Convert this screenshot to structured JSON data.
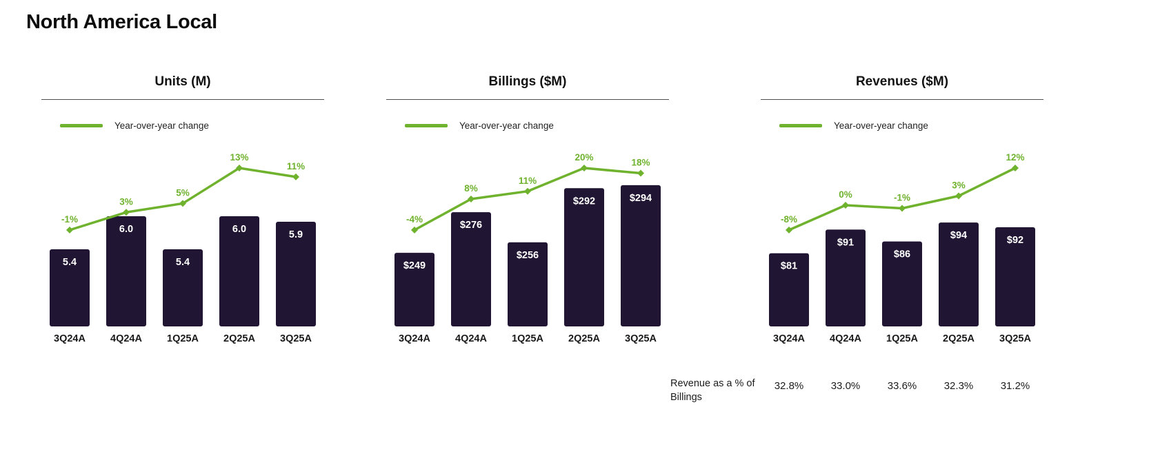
{
  "page": {
    "title": "North America Local"
  },
  "legend": {
    "label": "Year-over-year change"
  },
  "colors": {
    "bar": "#201532",
    "line": "#6fb22d",
    "bar_label": "#ffffff",
    "label": "#1a1a1a",
    "title": "#121212",
    "rule": "#4d4d4d"
  },
  "chart_data": [
    {
      "type": "bar",
      "title": "Units (M)",
      "categories": [
        "3Q24A",
        "4Q24A",
        "1Q25A",
        "2Q25A",
        "3Q25A"
      ],
      "series": [
        {
          "name": "Units",
          "type": "bar",
          "values": [
            5.4,
            6.0,
            5.4,
            6.0,
            5.9
          ],
          "labels": [
            "5.4",
            "6.0",
            "5.4",
            "6.0",
            "5.9"
          ]
        },
        {
          "name": "Year-over-year change",
          "type": "line",
          "values": [
            -1,
            3,
            5,
            13,
            11
          ],
          "labels": [
            "-1%",
            "3%",
            "5%",
            "13%",
            "11%"
          ]
        }
      ],
      "legend": [
        "Year-over-year change"
      ],
      "axis_hint": {
        "bar_ylim": [
          4.0,
          7.0
        ],
        "grid": false,
        "legend_position": "top-left"
      }
    },
    {
      "type": "bar",
      "title": "Billings ($M)",
      "categories": [
        "3Q24A",
        "4Q24A",
        "1Q25A",
        "2Q25A",
        "3Q25A"
      ],
      "series": [
        {
          "name": "Billings",
          "type": "bar",
          "values": [
            249,
            276,
            256,
            292,
            294
          ],
          "labels": [
            "$249",
            "$276",
            "$256",
            "$292",
            "$294"
          ]
        },
        {
          "name": "Year-over-year change",
          "type": "line",
          "values": [
            -4,
            8,
            11,
            20,
            18
          ],
          "labels": [
            "-4%",
            "8%",
            "11%",
            "20%",
            "18%"
          ]
        }
      ],
      "legend": [
        "Year-over-year change"
      ],
      "axis_hint": {
        "bar_ylim": [
          200,
          310
        ],
        "grid": false,
        "legend_position": "top-left"
      }
    },
    {
      "type": "bar",
      "title": "Revenues ($M)",
      "categories": [
        "3Q24A",
        "4Q24A",
        "1Q25A",
        "2Q25A",
        "3Q25A"
      ],
      "series": [
        {
          "name": "Revenues",
          "type": "bar",
          "values": [
            81,
            91,
            86,
            94,
            92
          ],
          "labels": [
            "$81",
            "$91",
            "$86",
            "$94",
            "$92"
          ]
        },
        {
          "name": "Year-over-year change",
          "type": "line",
          "values": [
            -8,
            0,
            -1,
            3,
            12
          ],
          "labels": [
            "-8%",
            "0%",
            "-1%",
            "3%",
            "12%"
          ]
        }
      ],
      "legend": [
        "Year-over-year change"
      ],
      "axis_hint": {
        "bar_ylim": [
          50,
          120
        ],
        "grid": false,
        "legend_position": "top-left"
      }
    }
  ],
  "footer": {
    "label": "Revenue as a % of Billings",
    "values": [
      "32.8%",
      "33.0%",
      "33.6%",
      "32.3%",
      "31.2%"
    ]
  }
}
